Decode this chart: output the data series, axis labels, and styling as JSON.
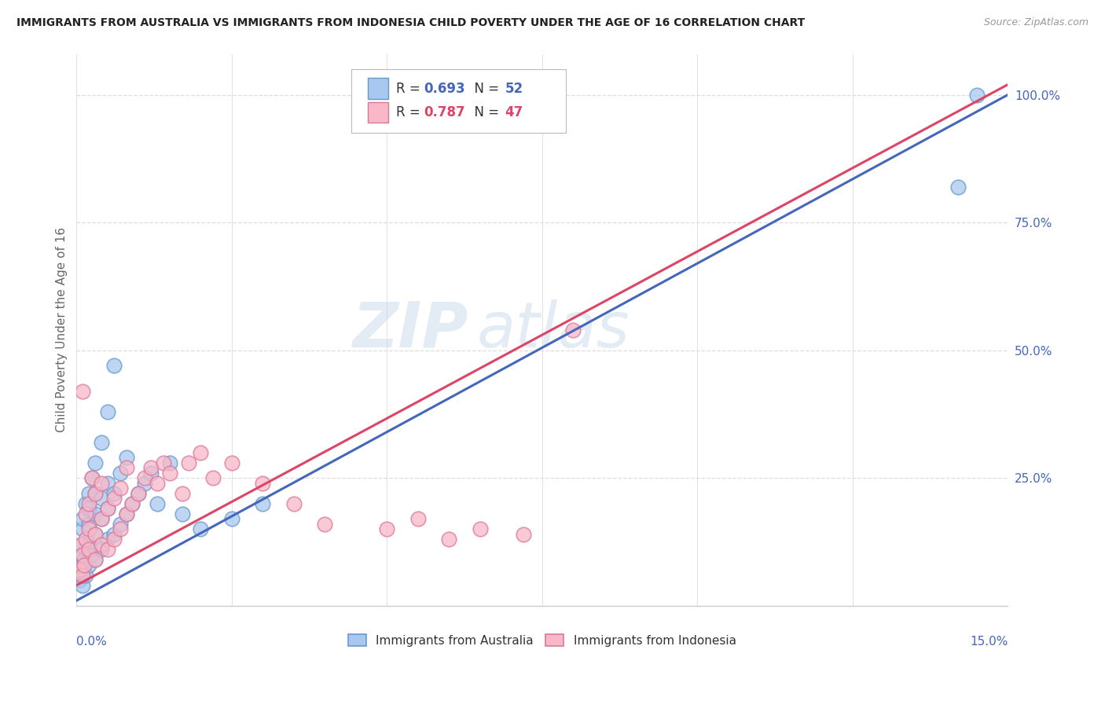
{
  "title": "IMMIGRANTS FROM AUSTRALIA VS IMMIGRANTS FROM INDONESIA CHILD POVERTY UNDER THE AGE OF 16 CORRELATION CHART",
  "source": "Source: ZipAtlas.com",
  "ylabel": "Child Poverty Under the Age of 16",
  "xlim": [
    0,
    0.15
  ],
  "ylim": [
    0,
    1.08
  ],
  "yticks": [
    0.25,
    0.5,
    0.75,
    1.0
  ],
  "ytick_labels": [
    "25.0%",
    "50.0%",
    "75.0%",
    "100.0%"
  ],
  "watermark_zip": "ZIP",
  "watermark_atlas": "atlas",
  "color_australia_fill": "#A8C8F0",
  "color_australia_edge": "#6699CC",
  "color_indonesia_fill": "#F8B8C8",
  "color_indonesia_edge": "#DD7799",
  "color_australia_line": "#4466BB",
  "color_indonesia_line": "#DD4466",
  "aus_trend_x0": 0.0,
  "aus_trend_y0": 0.01,
  "aus_trend_x1": 0.15,
  "aus_trend_y1": 1.0,
  "ind_trend_x0": 0.0,
  "ind_trend_y0": 0.04,
  "ind_trend_x1": 0.15,
  "ind_trend_y1": 1.02,
  "australia_x": [
    0.0005,
    0.0006,
    0.0007,
    0.0008,
    0.001,
    0.001,
    0.001,
    0.001,
    0.001,
    0.0012,
    0.0015,
    0.0015,
    0.0015,
    0.002,
    0.002,
    0.002,
    0.002,
    0.002,
    0.0025,
    0.0025,
    0.003,
    0.003,
    0.003,
    0.003,
    0.003,
    0.004,
    0.004,
    0.004,
    0.004,
    0.005,
    0.005,
    0.005,
    0.005,
    0.006,
    0.006,
    0.006,
    0.007,
    0.007,
    0.008,
    0.008,
    0.009,
    0.01,
    0.011,
    0.012,
    0.013,
    0.015,
    0.017,
    0.02,
    0.025,
    0.03,
    0.142,
    0.145
  ],
  "australia_y": [
    0.05,
    0.08,
    0.1,
    0.06,
    0.04,
    0.07,
    0.12,
    0.15,
    0.17,
    0.09,
    0.06,
    0.11,
    0.2,
    0.08,
    0.12,
    0.16,
    0.19,
    0.22,
    0.1,
    0.25,
    0.09,
    0.14,
    0.18,
    0.22,
    0.28,
    0.11,
    0.17,
    0.21,
    0.32,
    0.13,
    0.19,
    0.24,
    0.38,
    0.14,
    0.22,
    0.47,
    0.16,
    0.26,
    0.18,
    0.29,
    0.2,
    0.22,
    0.24,
    0.26,
    0.2,
    0.28,
    0.18,
    0.15,
    0.17,
    0.2,
    0.82,
    1.0
  ],
  "indonesia_x": [
    0.0005,
    0.0007,
    0.001,
    0.001,
    0.001,
    0.0012,
    0.0015,
    0.0015,
    0.002,
    0.002,
    0.002,
    0.0025,
    0.003,
    0.003,
    0.003,
    0.004,
    0.004,
    0.004,
    0.005,
    0.005,
    0.006,
    0.006,
    0.007,
    0.007,
    0.008,
    0.008,
    0.009,
    0.01,
    0.011,
    0.012,
    0.013,
    0.014,
    0.015,
    0.017,
    0.018,
    0.02,
    0.022,
    0.025,
    0.03,
    0.035,
    0.04,
    0.05,
    0.055,
    0.06,
    0.065,
    0.072,
    0.08
  ],
  "indonesia_y": [
    0.07,
    0.12,
    0.06,
    0.1,
    0.42,
    0.08,
    0.13,
    0.18,
    0.11,
    0.15,
    0.2,
    0.25,
    0.09,
    0.14,
    0.22,
    0.12,
    0.17,
    0.24,
    0.11,
    0.19,
    0.13,
    0.21,
    0.15,
    0.23,
    0.18,
    0.27,
    0.2,
    0.22,
    0.25,
    0.27,
    0.24,
    0.28,
    0.26,
    0.22,
    0.28,
    0.3,
    0.25,
    0.28,
    0.24,
    0.2,
    0.16,
    0.15,
    0.17,
    0.13,
    0.15,
    0.14,
    0.54
  ],
  "background_color": "#FFFFFF",
  "grid_color": "#DDDDDD",
  "title_color": "#222222",
  "axis_label_color": "#4466BB",
  "tick_label_color": "#4466BB",
  "legend_r1_color": "#4466BB",
  "legend_r2_color": "#DD4466"
}
